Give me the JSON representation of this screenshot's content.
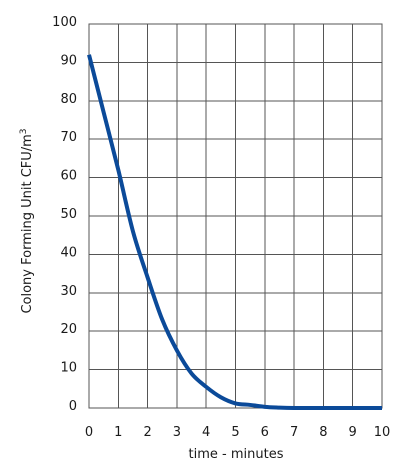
{
  "chart_data": {
    "type": "line",
    "title": "",
    "xlabel": "time - minutes",
    "ylabel_text": "Colony Forming Unit CFU/m",
    "ylabel_sup": "3",
    "xlim": [
      0,
      10
    ],
    "ylim": [
      0,
      100
    ],
    "x_ticks": [
      "0",
      "1",
      "2",
      "3",
      "4",
      "5",
      "6",
      "7",
      "8",
      "9",
      "10"
    ],
    "y_ticks": [
      "0",
      "10",
      "20",
      "30",
      "40",
      "50",
      "60",
      "70",
      "80",
      "90",
      "100"
    ],
    "grid": true,
    "legend": "none",
    "series": [
      {
        "color": "#0b4a99",
        "x": [
          0,
          0.5,
          1,
          1.5,
          2,
          2.5,
          3,
          3.5,
          4,
          4.5,
          5,
          5.5,
          6,
          6.5,
          7,
          7.5,
          8,
          8.5,
          9,
          9.5,
          10
        ],
        "y": [
          92,
          77,
          62,
          46,
          34,
          23,
          15,
          9,
          5.5,
          2.8,
          1.2,
          0.8,
          0.3,
          0.1,
          0,
          0,
          0,
          0,
          0,
          0,
          0
        ]
      }
    ]
  }
}
